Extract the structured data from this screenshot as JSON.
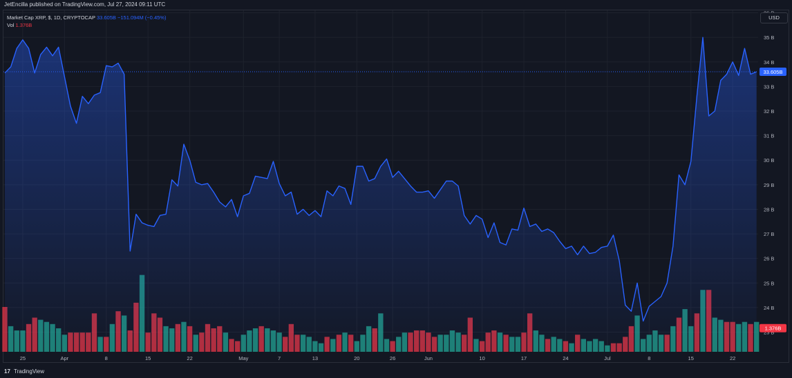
{
  "header": {
    "published": "JetEncilla published on TradingView.com, Jul 27, 2024 09:11 UTC"
  },
  "legend": {
    "series_label": "Market Cap XRP, $, 1D, CRYPTOCAP",
    "last_value": "33.605B",
    "change": "−151.094M (−0.45%)",
    "vol_label": "Vol",
    "vol_value": "1.376B"
  },
  "currency_button": "USD",
  "footer": {
    "brand": "TradingView",
    "logo_glyph": "17"
  },
  "colors": {
    "background": "#131722",
    "line": "#2962ff",
    "volume_up": "#22ab94",
    "volume_down": "#f23645",
    "grid": "#1e222d",
    "text": "#d1d4dc"
  },
  "chart_data": {
    "type": "area",
    "title": "Market Cap XRP, $, 1D, CRYPTOCAP",
    "y_axis_labels": [
      "23 B",
      "24 B",
      "25 B",
      "26 B",
      "27 B",
      "28 B",
      "29 B",
      "30 B",
      "31 B",
      "32 B",
      "33 B",
      "34 B",
      "35 B",
      "36 B"
    ],
    "y_axis_ticks": [
      23,
      24,
      25,
      26,
      27,
      28,
      29,
      30,
      31,
      32,
      33,
      34,
      35,
      36
    ],
    "ylim": [
      22.2,
      36.1
    ],
    "x_axis_labels": [
      {
        "label": "25",
        "index": 3
      },
      {
        "label": "Apr",
        "index": 10
      },
      {
        "label": "8",
        "index": 17
      },
      {
        "label": "15",
        "index": 24
      },
      {
        "label": "22",
        "index": 31
      },
      {
        "label": "May",
        "index": 40
      },
      {
        "label": "7",
        "index": 46
      },
      {
        "label": "13",
        "index": 52
      },
      {
        "label": "20",
        "index": 59
      },
      {
        "label": "26",
        "index": 65
      },
      {
        "label": "Jun",
        "index": 71
      },
      {
        "label": "10",
        "index": 80
      },
      {
        "label": "17",
        "index": 87
      },
      {
        "label": "24",
        "index": 94
      },
      {
        "label": "Jul",
        "index": 101
      },
      {
        "label": "8",
        "index": 108
      },
      {
        "label": "15",
        "index": 115
      },
      {
        "label": "22",
        "index": 122
      }
    ],
    "n_points": 127,
    "values": [
      33.55,
      33.8,
      34.55,
      34.9,
      34.55,
      33.55,
      34.3,
      34.6,
      34.25,
      34.6,
      33.4,
      32.2,
      31.5,
      32.6,
      32.3,
      32.65,
      32.75,
      33.85,
      33.8,
      33.95,
      33.5,
      26.3,
      27.8,
      27.45,
      27.35,
      27.3,
      27.75,
      27.8,
      29.2,
      28.95,
      30.65,
      30.0,
      29.1,
      29.0,
      29.05,
      28.7,
      28.3,
      28.1,
      28.4,
      27.7,
      28.55,
      28.65,
      29.35,
      29.3,
      29.25,
      29.95,
      29.05,
      28.55,
      28.7,
      27.8,
      28.0,
      27.75,
      27.95,
      27.7,
      28.75,
      28.55,
      28.95,
      28.85,
      28.2,
      29.75,
      29.75,
      29.15,
      29.25,
      29.75,
      30.05,
      29.3,
      29.55,
      29.25,
      28.95,
      28.7,
      28.7,
      28.75,
      28.45,
      28.8,
      29.15,
      29.15,
      28.95,
      27.75,
      27.4,
      27.75,
      27.6,
      26.85,
      27.45,
      26.65,
      26.55,
      27.2,
      27.15,
      28.05,
      27.3,
      27.4,
      27.1,
      27.2,
      27.05,
      26.7,
      26.4,
      26.5,
      26.15,
      26.5,
      26.2,
      26.25,
      26.45,
      26.5,
      26.95,
      25.9,
      24.1,
      23.85,
      25.0,
      23.45,
      24.05,
      24.25,
      24.45,
      25.0,
      26.5,
      29.4,
      29.0,
      29.95,
      32.6,
      35.0,
      31.8,
      32.0,
      33.25,
      33.5,
      34.0,
      33.45,
      34.55,
      33.5,
      33.6
    ],
    "volume": {
      "name": "Vol",
      "last": "1.376B",
      "values": [
        2.1,
        1.2,
        1.0,
        1.0,
        1.3,
        1.6,
        1.5,
        1.4,
        1.3,
        1.1,
        0.8,
        0.9,
        0.9,
        0.9,
        0.9,
        1.8,
        0.7,
        0.7,
        1.3,
        1.9,
        1.7,
        1.0,
        2.3,
        3.6,
        0.9,
        1.8,
        1.6,
        1.2,
        1.1,
        1.3,
        1.4,
        1.2,
        0.8,
        0.9,
        1.3,
        1.1,
        1.2,
        0.9,
        0.6,
        0.5,
        0.8,
        1.0,
        1.1,
        1.2,
        1.1,
        1.0,
        0.9,
        0.7,
        1.3,
        0.8,
        0.8,
        0.7,
        0.5,
        0.4,
        0.7,
        0.6,
        0.8,
        0.9,
        0.8,
        0.5,
        0.8,
        1.2,
        1.1,
        1.8,
        0.6,
        0.5,
        0.7,
        0.9,
        0.9,
        1.0,
        1.0,
        0.9,
        0.7,
        0.8,
        0.8,
        1.0,
        0.9,
        0.8,
        1.6,
        0.6,
        0.5,
        0.9,
        1.0,
        0.9,
        0.8,
        0.7,
        0.7,
        0.9,
        1.8,
        1.0,
        0.8,
        0.6,
        0.7,
        0.6,
        0.5,
        0.4,
        0.8,
        0.6,
        0.5,
        0.6,
        0.5,
        0.3,
        0.4,
        0.4,
        0.7,
        1.2,
        1.7,
        0.6,
        0.8,
        1.0,
        0.8,
        0.8,
        1.2,
        1.6,
        2.0,
        1.2,
        1.8,
        2.9,
        2.9,
        1.6,
        1.5,
        1.4,
        1.4,
        1.3,
        1.4,
        1.3,
        1.4
      ],
      "up": [
        false,
        true,
        true,
        true,
        false,
        false,
        true,
        true,
        true,
        true,
        true,
        false,
        false,
        false,
        false,
        false,
        true,
        false,
        true,
        false,
        true,
        false,
        false,
        true,
        false,
        false,
        false,
        true,
        true,
        false,
        true,
        false,
        true,
        false,
        false,
        false,
        false,
        true,
        false,
        false,
        true,
        true,
        true,
        false,
        true,
        true,
        true,
        false,
        false,
        false,
        true,
        true,
        true,
        true,
        false,
        true,
        false,
        true,
        false,
        true,
        true,
        true,
        false,
        true,
        true,
        false,
        true,
        true,
        false,
        false,
        false,
        false,
        false,
        true,
        true,
        true,
        true,
        false,
        false,
        true,
        false,
        false,
        false,
        true,
        false,
        true,
        true,
        false,
        false,
        true,
        true,
        false,
        true,
        true,
        false,
        true,
        false,
        true,
        true,
        true,
        true,
        true,
        false,
        false,
        false,
        false,
        true,
        true,
        true,
        true,
        true,
        false,
        true,
        false,
        true,
        true,
        false,
        true,
        false,
        true,
        true,
        false,
        false,
        true,
        true,
        false,
        true
      ],
      "ylim": [
        0,
        16
      ]
    },
    "current_price_label": "33.605B",
    "current_volume_label": "1.376B"
  }
}
